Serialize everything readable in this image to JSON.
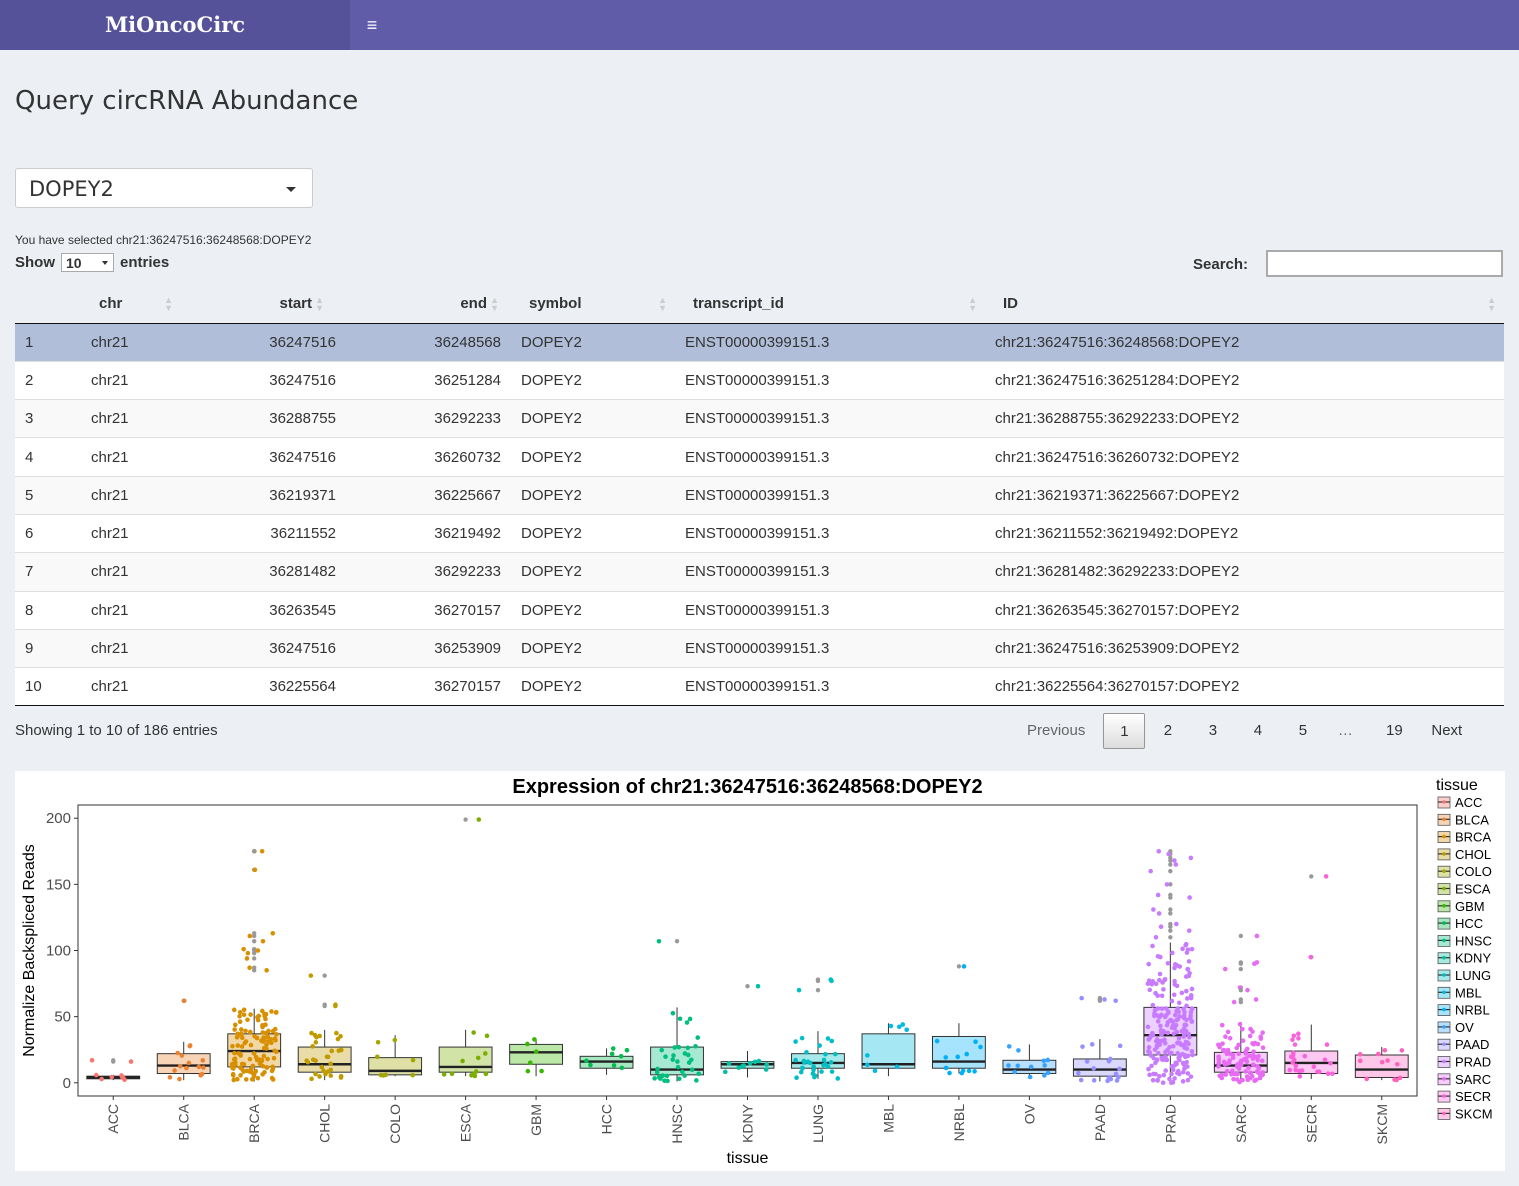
{
  "header": {
    "app_title": "MiOncoCirc",
    "menu_icon": "hamburger-icon"
  },
  "page": {
    "title": "Query circRNA Abundance"
  },
  "gene_select": {
    "value": "DOPEY2"
  },
  "selection_text": "You have selected chr21:36247516:36248568:DOPEY2",
  "table_controls": {
    "show_label": "Show",
    "length_value": "10",
    "entries_label": "entries",
    "search_label": "Search:",
    "search_value": ""
  },
  "table": {
    "columns": [
      "",
      "chr",
      "start",
      "end",
      "symbol",
      "transcript_id",
      "ID"
    ],
    "rows": [
      [
        "1",
        "chr21",
        "36247516",
        "36248568",
        "DOPEY2",
        "ENST00000399151.3",
        "chr21:36247516:36248568:DOPEY2"
      ],
      [
        "2",
        "chr21",
        "36247516",
        "36251284",
        "DOPEY2",
        "ENST00000399151.3",
        "chr21:36247516:36251284:DOPEY2"
      ],
      [
        "3",
        "chr21",
        "36288755",
        "36292233",
        "DOPEY2",
        "ENST00000399151.3",
        "chr21:36288755:36292233:DOPEY2"
      ],
      [
        "4",
        "chr21",
        "36247516",
        "36260732",
        "DOPEY2",
        "ENST00000399151.3",
        "chr21:36247516:36260732:DOPEY2"
      ],
      [
        "5",
        "chr21",
        "36219371",
        "36225667",
        "DOPEY2",
        "ENST00000399151.3",
        "chr21:36219371:36225667:DOPEY2"
      ],
      [
        "6",
        "chr21",
        "36211552",
        "36219492",
        "DOPEY2",
        "ENST00000399151.3",
        "chr21:36211552:36219492:DOPEY2"
      ],
      [
        "7",
        "chr21",
        "36281482",
        "36292233",
        "DOPEY2",
        "ENST00000399151.3",
        "chr21:36281482:36292233:DOPEY2"
      ],
      [
        "8",
        "chr21",
        "36263545",
        "36270157",
        "DOPEY2",
        "ENST00000399151.3",
        "chr21:36263545:36270157:DOPEY2"
      ],
      [
        "9",
        "chr21",
        "36247516",
        "36253909",
        "DOPEY2",
        "ENST00000399151.3",
        "chr21:36247516:36253909:DOPEY2"
      ],
      [
        "10",
        "chr21",
        "36225564",
        "36270157",
        "DOPEY2",
        "ENST00000399151.3",
        "chr21:36225564:36270157:DOPEY2"
      ]
    ]
  },
  "table_info": "Showing 1 to 10 of 186 entries",
  "pagination": {
    "previous": "Previous",
    "pages": [
      "1",
      "2",
      "3",
      "4",
      "5",
      "…",
      "19"
    ],
    "next": "Next",
    "current": "1"
  },
  "chart_data": {
    "type": "box",
    "title": "Expression of chr21:36247516:36248568:DOPEY2",
    "xlabel": "tissue",
    "ylabel": "Normalize Backspliced Reads",
    "ylim": [
      -10,
      210
    ],
    "yticks": [
      0,
      50,
      100,
      150,
      200
    ],
    "legend_title": "tissue",
    "legend_position": "right",
    "categories": [
      "ACC",
      "BLCA",
      "BRCA",
      "CHOL",
      "COLO",
      "ESCA",
      "GBM",
      "HCC",
      "HNSC",
      "KDNY",
      "LUNG",
      "MBL",
      "NRBL",
      "OV",
      "PAAD",
      "PRAD",
      "SARC",
      "SECR",
      "SKCM"
    ],
    "colors": [
      "#F8766D",
      "#EA8331",
      "#D89000",
      "#C09B00",
      "#A3A500",
      "#7CAE00",
      "#39B600",
      "#00BB4E",
      "#00BF7D",
      "#00C1A3",
      "#00BFC4",
      "#00BAE0",
      "#00B0F6",
      "#35A2FF",
      "#9590FF",
      "#C77CFF",
      "#E76BF3",
      "#FA62DB",
      "#FF62BC"
    ],
    "boxes": [
      {
        "q1": 3,
        "median": 4,
        "q3": 5,
        "whisker_low": 2,
        "whisker_high": 6
      },
      {
        "q1": 7,
        "median": 13,
        "q3": 22,
        "whisker_low": 2,
        "whisker_high": 31
      },
      {
        "q1": 12,
        "median": 24,
        "q3": 37,
        "whisker_low": 1,
        "whisker_high": 56
      },
      {
        "q1": 8,
        "median": 14,
        "q3": 27,
        "whisker_low": 2,
        "whisker_high": 40
      },
      {
        "q1": 6,
        "median": 9,
        "q3": 19,
        "whisker_low": 5,
        "whisker_high": 36
      },
      {
        "q1": 8,
        "median": 12,
        "q3": 27,
        "whisker_low": 5,
        "whisker_high": 40
      },
      {
        "q1": 14,
        "median": 23,
        "q3": 29,
        "whisker_low": 5,
        "whisker_high": 33
      },
      {
        "q1": 11,
        "median": 16,
        "q3": 20,
        "whisker_low": 6,
        "whisker_high": 26
      },
      {
        "q1": 6,
        "median": 10,
        "q3": 27,
        "whisker_low": 1,
        "whisker_high": 57
      },
      {
        "q1": 11,
        "median": 14,
        "q3": 16,
        "whisker_low": 4,
        "whisker_high": 24
      },
      {
        "q1": 11,
        "median": 15,
        "q3": 22,
        "whisker_low": 3,
        "whisker_high": 39
      },
      {
        "q1": 11,
        "median": 14,
        "q3": 37,
        "whisker_low": 5,
        "whisker_high": 45
      },
      {
        "q1": 11,
        "median": 16,
        "q3": 35,
        "whisker_low": 7,
        "whisker_high": 45
      },
      {
        "q1": 7,
        "median": 10,
        "q3": 17,
        "whisker_low": 3,
        "whisker_high": 29
      },
      {
        "q1": 5,
        "median": 10,
        "q3": 18,
        "whisker_low": 1,
        "whisker_high": 33
      },
      {
        "q1": 21,
        "median": 36,
        "q3": 57,
        "whisker_low": 0,
        "whisker_high": 106
      },
      {
        "q1": 8,
        "median": 13,
        "q3": 23,
        "whisker_low": 0,
        "whisker_high": 46
      },
      {
        "q1": 7,
        "median": 15,
        "q3": 24,
        "whisker_low": 3,
        "whisker_high": 44
      },
      {
        "q1": 4,
        "median": 10,
        "q3": 21,
        "whisker_low": 2,
        "whisker_high": 27
      }
    ],
    "outliers": [
      [
        17,
        16
      ],
      [
        62
      ],
      [
        161,
        175,
        175,
        113,
        111,
        107,
        101,
        100,
        98,
        94,
        87,
        85
      ],
      [
        81,
        59,
        58
      ],
      [],
      [
        199
      ],
      [],
      [],
      [
        107
      ],
      [
        73
      ],
      [
        78,
        77,
        70
      ],
      [],
      [
        88
      ],
      [],
      [
        64,
        63,
        62
      ],
      [
        175,
        173,
        170,
        168,
        165,
        160,
        150,
        142,
        140,
        131,
        128,
        120,
        118,
        115,
        110
      ],
      [
        111,
        91,
        90,
        86,
        72,
        70,
        63,
        61
      ],
      [
        156,
        95
      ],
      []
    ],
    "n_points": [
      7,
      15,
      120,
      30,
      8,
      12,
      6,
      8,
      35,
      10,
      30,
      8,
      12,
      12,
      18,
      210,
      100,
      25,
      12
    ]
  }
}
